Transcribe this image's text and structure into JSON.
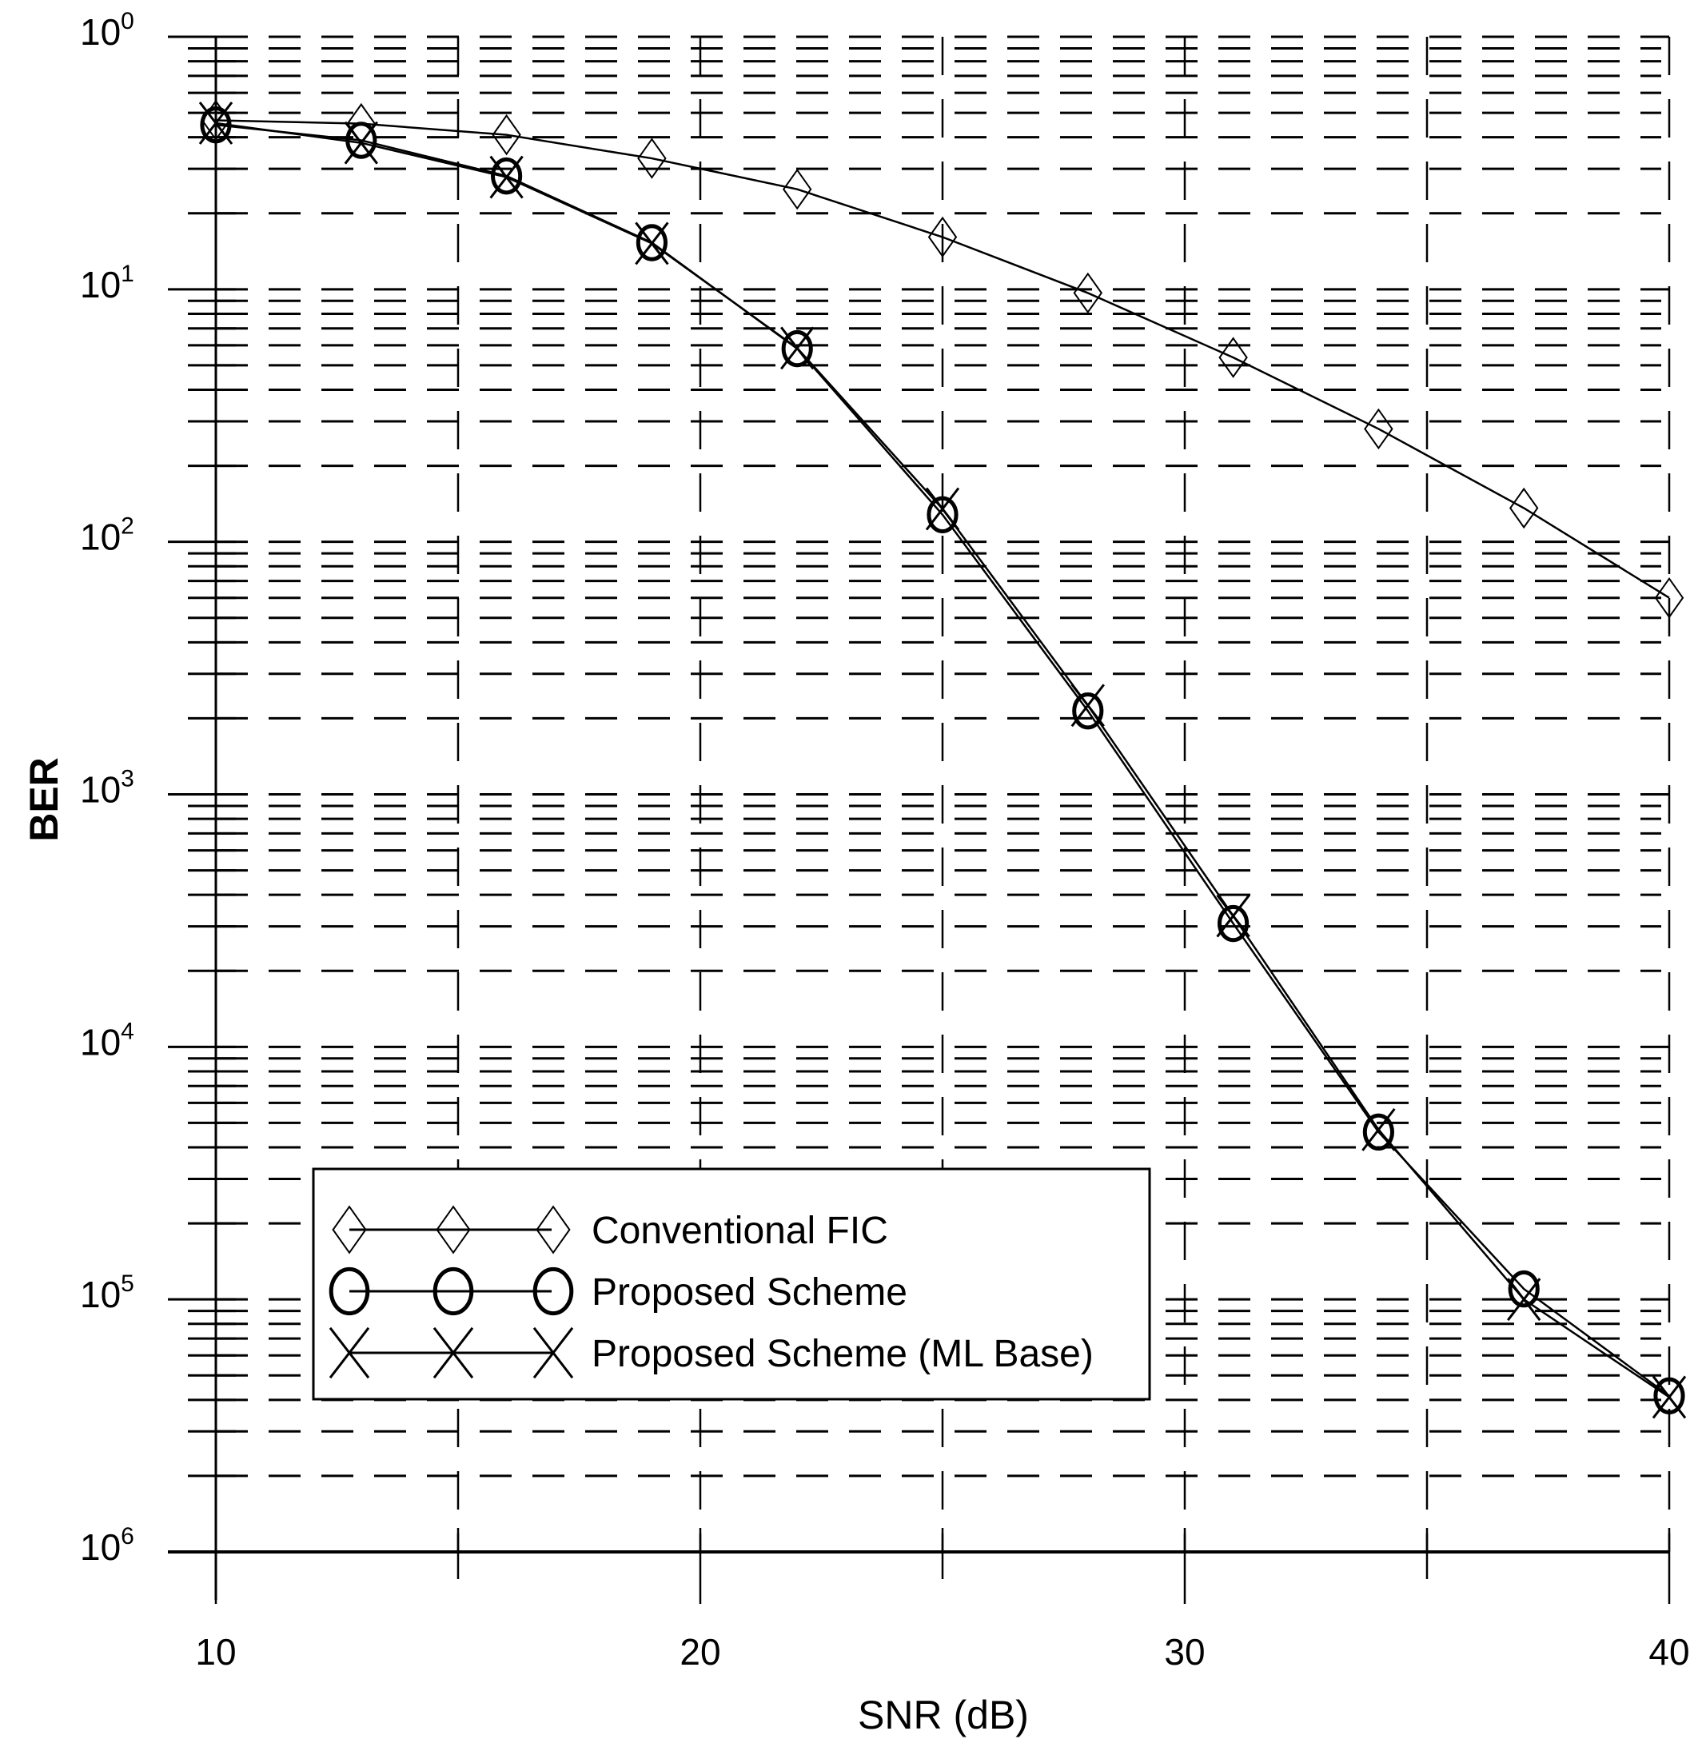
{
  "chart_data": {
    "type": "line",
    "title": "",
    "xlabel": "SNR (dB)",
    "ylabel": "BER",
    "xscale": "linear",
    "yscale": "log",
    "xlim": [
      10,
      40
    ],
    "ylim": [
      1e-06,
      1
    ],
    "x_ticks": [
      10,
      20,
      30,
      40
    ],
    "x_tick_labels": [
      "10",
      "20",
      "30",
      "40"
    ],
    "x_minor_ticks": [
      15,
      25,
      35
    ],
    "y_ticks": [
      1,
      0.1,
      0.01,
      0.001,
      0.0001,
      1e-05,
      1e-06
    ],
    "y_tick_labels": [
      {
        "base": "10",
        "exp": "0"
      },
      {
        "base": "10",
        "exp": "1"
      },
      {
        "base": "10",
        "exp": "2"
      },
      {
        "base": "10",
        "exp": "3"
      },
      {
        "base": "10",
        "exp": "4"
      },
      {
        "base": "10",
        "exp": "5"
      },
      {
        "base": "10",
        "exp": "6"
      }
    ],
    "grid": true,
    "grid_style": "dashed",
    "legend_position": "lower-left",
    "x": [
      10,
      13,
      16,
      19,
      22,
      25,
      28,
      31,
      34,
      37,
      40
    ],
    "series": [
      {
        "name": "Conventional FIC",
        "marker": "diamond",
        "values": [
          0.467,
          0.453,
          0.409,
          0.33,
          0.249,
          0.161,
          0.0967,
          0.0537,
          0.028,
          0.0136,
          0.006
        ]
      },
      {
        "name": "Proposed Scheme",
        "marker": "circle",
        "values": [
          0.448,
          0.389,
          0.281,
          0.153,
          0.0582,
          0.0128,
          0.00214,
          0.000308,
          4.6e-05,
          1.1e-05,
          4.15e-06
        ]
      },
      {
        "name": "Proposed Scheme (ML Base)",
        "marker": "x",
        "values": [
          0.455,
          0.38,
          0.278,
          0.152,
          0.0585,
          0.0135,
          0.00225,
          0.00033,
          4.7e-05,
          1e-05,
          4.1e-06
        ]
      }
    ]
  },
  "colors": {
    "line": "#000000",
    "background": "#ffffff",
    "grid": "#000000"
  }
}
